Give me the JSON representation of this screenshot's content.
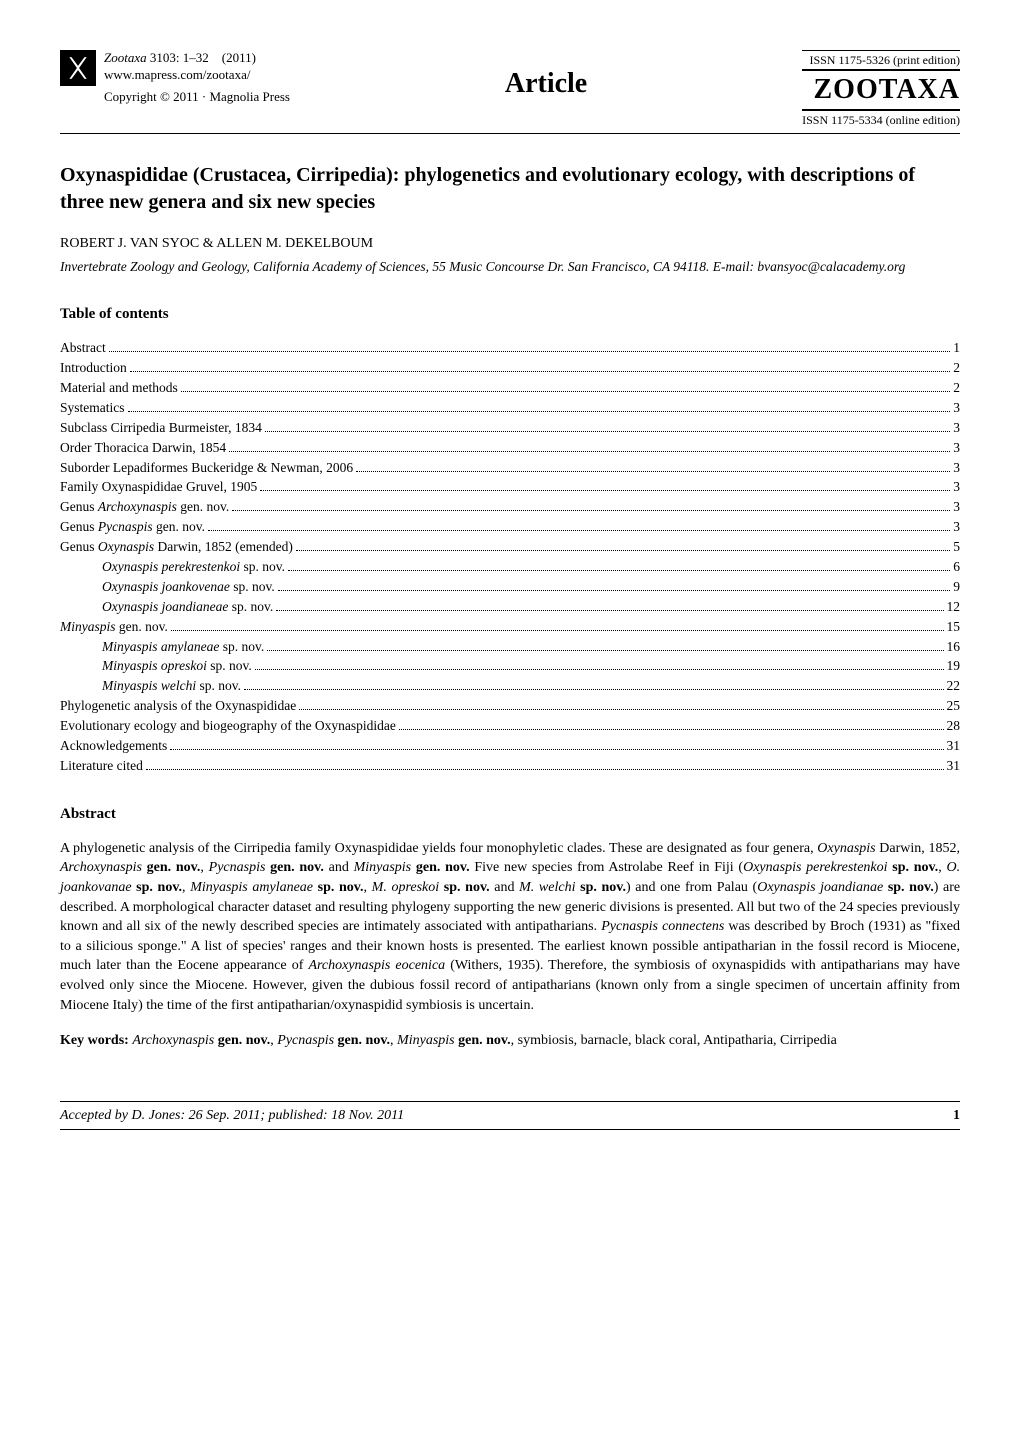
{
  "header": {
    "journal_italic": "Zootaxa",
    "issue": "3103: 1–32",
    "year": "(2011)",
    "url": "www.mapress.com/zootaxa/",
    "copyright": "Copyright © 2011  ·  Magnolia Press",
    "article_label": "Article",
    "issn_print": "ISSN 1175-5326  (print edition)",
    "zootaxa_logo": "ZOOTAXA",
    "issn_online": "ISSN 1175-5334 (online edition)"
  },
  "title": "Oxynaspididae (Crustacea, Cirripedia): phylogenetics and evolutionary ecology, with descriptions of three new genera and six new species",
  "authors": "ROBERT J. VAN SYOC & ALLEN M. DEKELBOUM",
  "affiliation": "Invertebrate Zoology and Geology, California Academy of Sciences, 55 Music Concourse Dr. San Francisco, CA 94118. E-mail: bvansyoc@calacademy.org",
  "toc_heading": "Table of contents",
  "toc": [
    {
      "label": "Abstract",
      "page": "1",
      "indent": 0
    },
    {
      "label": "Introduction",
      "page": "2",
      "indent": 0
    },
    {
      "label": "Material and methods",
      "page": "2",
      "indent": 0
    },
    {
      "label": "Systematics",
      "page": "3",
      "indent": 0
    },
    {
      "label": "Subclass Cirripedia Burmeister, 1834",
      "page": "3",
      "indent": 0
    },
    {
      "label": "Order Thoracica Darwin, 1854",
      "page": "3",
      "indent": 0
    },
    {
      "label": "Suborder Lepadiformes Buckeridge & Newman, 2006",
      "page": "3",
      "indent": 0
    },
    {
      "label": "Family Oxynaspididae Gruvel, 1905",
      "page": "3",
      "indent": 0
    },
    {
      "label_html": "Genus <span class='italic'>Archoxynaspis</span> gen. nov.",
      "page": "3",
      "indent": 0
    },
    {
      "label_html": "Genus <span class='italic'>Pycnaspis</span> gen. nov.",
      "page": "3",
      "indent": 0
    },
    {
      "label_html": "Genus <span class='italic'>Oxynaspis</span> Darwin, 1852 (emended)",
      "page": "5",
      "indent": 0
    },
    {
      "label_html": "<span class='italic'>Oxynaspis perekrestenkoi</span> sp. nov.",
      "page": "6",
      "indent": 1
    },
    {
      "label_html": "<span class='italic'>Oxynaspis joankovenae</span> sp. nov.",
      "page": "9",
      "indent": 1
    },
    {
      "label_html": "<span class='italic'>Oxynaspis joandianeae</span> sp. nov.",
      "page": "12",
      "indent": 1
    },
    {
      "label_html": "<span class='italic'>Minyaspis</span> gen. nov.",
      "page": "15",
      "indent": 0
    },
    {
      "label_html": "<span class='italic'>Minyaspis amylaneae</span> sp. nov.",
      "page": "16",
      "indent": 1
    },
    {
      "label_html": "<span class='italic'>Minyaspis opreskoi</span> sp. nov.",
      "page": "19",
      "indent": 1
    },
    {
      "label_html": "<span class='italic'>Minyaspis welchi</span> sp. nov.",
      "page": "22",
      "indent": 1
    },
    {
      "label": "Phylogenetic analysis of the Oxynaspididae",
      "page": "25",
      "indent": 0
    },
    {
      "label": "Evolutionary ecology and biogeography of the Oxynaspididae",
      "page": "28",
      "indent": 0
    },
    {
      "label": "Acknowledgements",
      "page": "31",
      "indent": 0
    },
    {
      "label": "Literature cited",
      "page": "31",
      "indent": 0
    }
  ],
  "abstract_heading": "Abstract",
  "abstract_body_html": "A phylogenetic analysis of the Cirripedia family Oxynaspididae yields four monophyletic clades. These are designated as four genera, <span class='italic'>Oxynaspis</span> Darwin, 1852, <span class='italic'>Archoxynaspis</span> <span class='bold'>gen. nov.</span>, <span class='italic'>Pycnaspis</span> <span class='bold'>gen. nov.</span> and <span class='italic'>Minyaspis</span> <span class='bold'>gen. nov.</span> Five new species from Astrolabe Reef in Fiji (<span class='italic'>Oxynaspis perekrestenkoi</span> <span class='bold'>sp. nov.</span>, <span class='italic'>O. joankovanae</span> <span class='bold'>sp. nov.</span>, <span class='italic'>Minyaspis amylaneae</span> <span class='bold'>sp. nov.</span>, <span class='italic'>M. opreskoi</span> <span class='bold'>sp. nov.</span> and <span class='italic'>M. welchi</span> <span class='bold'>sp. nov.</span>) and one from Palau (<span class='italic'>Oxynaspis joandianae</span> <span class='bold'>sp. nov.</span>) are described. A morphological character dataset and resulting phylogeny supporting the new generic divisions is presented. All but two of the 24 species previously known and all six of the newly described species are intimately associated with antipatharians. <span class='italic'>Pycnaspis connectens</span> was described by Broch (1931) as \"fixed to a silicious sponge.\" A list of species' ranges and their known hosts is presented. The earliest known possible antipatharian in the fossil record is Miocene, much later than the Eocene appearance of <span class='italic'>Archoxynaspis eocenica</span> (Withers, 1935). Therefore, the symbiosis of oxynaspidids with antipatharians may have evolved only since the Miocene. However, given the dubious fossil record of antipatharians (known only from a single specimen of uncertain affinity from Miocene Italy) the time of the first antipatharian/oxynaspidid symbiosis is uncertain.",
  "keywords_html": "<span class='bold'>Key words:</span> <span class='italic'>Archoxynaspis</span> <span class='bold'>gen. nov.</span>, <span class='italic'>Pycnaspis</span> <span class='bold'>gen. nov.</span>, <span class='italic'>Minyaspis</span> <span class='bold'>gen. nov.</span>, symbiosis, barnacle, black coral, Antipatharia, Cirripedia",
  "footer": {
    "accepted": "Accepted by D. Jones: 26 Sep. 2011; published: 18 Nov. 2011",
    "page": "1"
  }
}
